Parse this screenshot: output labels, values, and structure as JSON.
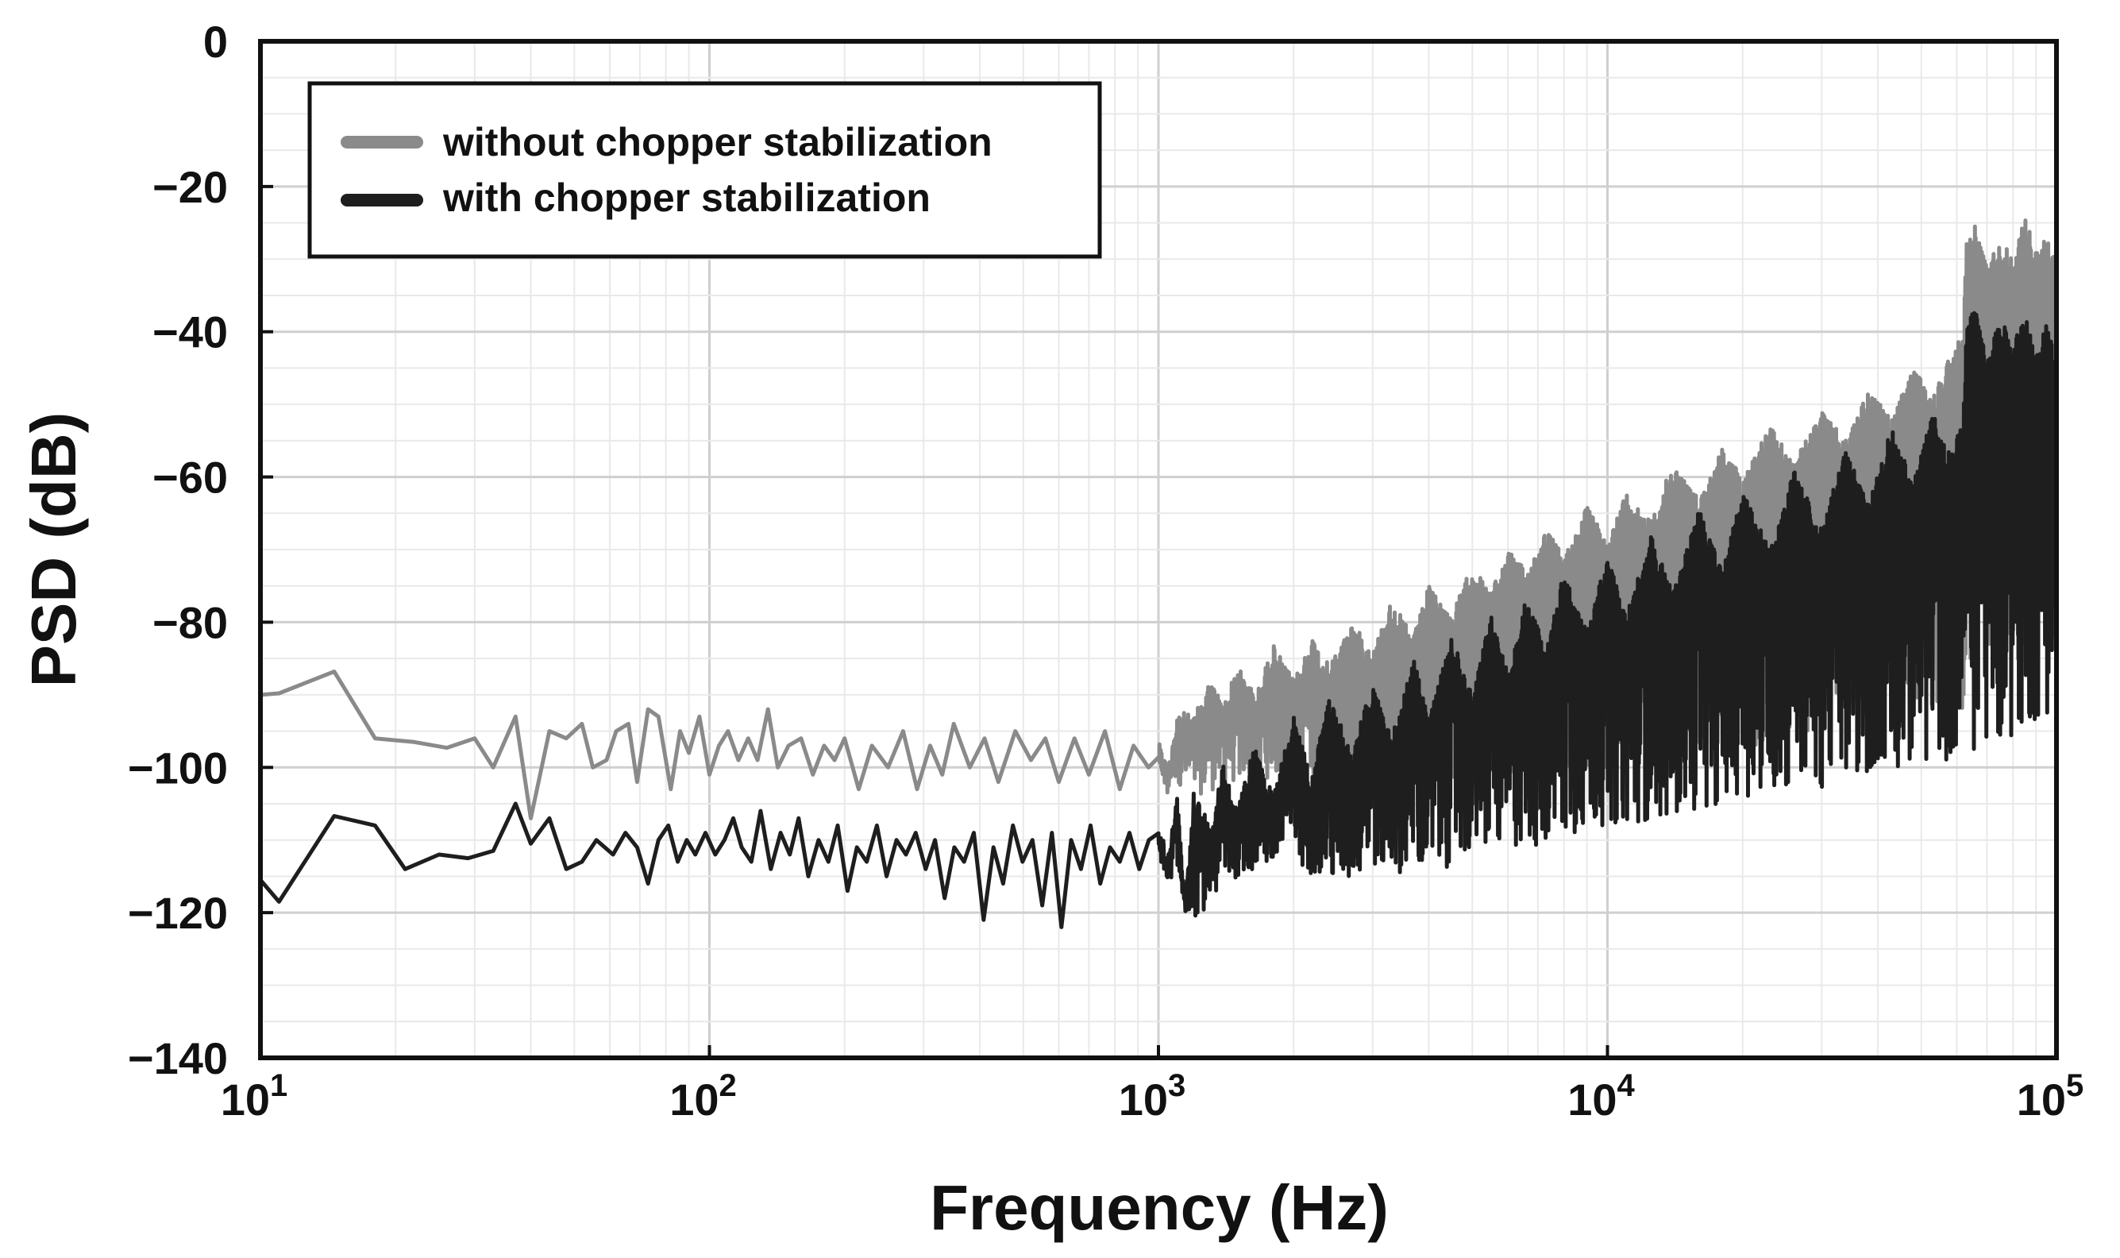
{
  "chart_data": {
    "type": "line",
    "title": "",
    "xlabel": "Frequency (Hz)",
    "ylabel": "PSD (dB)",
    "xscale": "log",
    "xlim": [
      10,
      100000
    ],
    "ylim": [
      -140,
      0
    ],
    "grid": true,
    "legend_position": "top-left",
    "x_ticks": [
      {
        "base": "10",
        "exp": "1",
        "value": 10
      },
      {
        "base": "10",
        "exp": "2",
        "value": 100
      },
      {
        "base": "10",
        "exp": "3",
        "value": 1000
      },
      {
        "base": "10",
        "exp": "4",
        "value": 10000
      },
      {
        "base": "10",
        "exp": "5",
        "value": 100000
      }
    ],
    "y_ticks": [
      {
        "value": 0,
        "label": "0"
      },
      {
        "value": -20,
        "label": "−20"
      },
      {
        "value": -40,
        "label": "−40"
      },
      {
        "value": -60,
        "label": "−60"
      },
      {
        "value": -80,
        "label": "−80"
      },
      {
        "value": -100,
        "label": "−100"
      },
      {
        "value": -120,
        "label": "−120"
      },
      {
        "value": -140,
        "label": "−140"
      }
    ],
    "series": [
      {
        "name": "without chopper stabilization",
        "color": "#8a8a8a",
        "points": [
          [
            10,
            -90
          ],
          [
            11,
            -89.8
          ],
          [
            14.6,
            -86.8
          ],
          [
            18,
            -96
          ],
          [
            22,
            -96.5
          ],
          [
            26,
            -97.3
          ],
          [
            30,
            -96
          ],
          [
            33,
            -100
          ],
          [
            37,
            -93
          ],
          [
            40,
            -107
          ],
          [
            44,
            -95
          ],
          [
            48,
            -96
          ],
          [
            52,
            -94
          ],
          [
            55,
            -100
          ],
          [
            59,
            -99
          ],
          [
            62,
            -95
          ],
          [
            66,
            -94
          ],
          [
            69,
            -102
          ],
          [
            73,
            -92
          ],
          [
            77,
            -93
          ],
          [
            82,
            -103
          ],
          [
            86,
            -95
          ],
          [
            90,
            -98
          ],
          [
            95,
            -93
          ],
          [
            100,
            -101
          ],
          [
            105,
            -97
          ],
          [
            110,
            -95
          ],
          [
            116,
            -99
          ],
          [
            122,
            -96
          ],
          [
            128,
            -99
          ],
          [
            135,
            -92
          ],
          [
            142,
            -100
          ],
          [
            150,
            -97
          ],
          [
            160,
            -96
          ],
          [
            170,
            -101
          ],
          [
            180,
            -97
          ],
          [
            190,
            -99
          ],
          [
            200,
            -96
          ],
          [
            215,
            -103
          ],
          [
            230,
            -97
          ],
          [
            250,
            -100
          ],
          [
            270,
            -95
          ],
          [
            290,
            -103
          ],
          [
            310,
            -97
          ],
          [
            330,
            -101
          ],
          [
            350,
            -94
          ],
          [
            380,
            -100
          ],
          [
            410,
            -96
          ],
          [
            440,
            -102
          ],
          [
            480,
            -95
          ],
          [
            520,
            -99
          ],
          [
            560,
            -96
          ],
          [
            600,
            -102
          ],
          [
            650,
            -96
          ],
          [
            700,
            -101
          ],
          [
            760,
            -95
          ],
          [
            820,
            -103
          ],
          [
            880,
            -97
          ],
          [
            950,
            -100
          ],
          [
            1000,
            -96
          ],
          [
            1050,
            -100
          ],
          [
            1100,
            -92
          ],
          [
            1200,
            -93
          ],
          [
            1300,
            -88
          ],
          [
            1400,
            -91
          ],
          [
            1500,
            -86
          ],
          [
            1650,
            -90
          ],
          [
            1800,
            -83
          ],
          [
            2000,
            -88
          ],
          [
            2200,
            -82
          ],
          [
            2400,
            -86
          ],
          [
            2700,
            -80
          ],
          [
            3000,
            -84
          ],
          [
            3300,
            -77
          ],
          [
            3700,
            -82
          ],
          [
            4000,
            -75
          ],
          [
            4500,
            -79
          ],
          [
            5000,
            -72
          ],
          [
            5500,
            -76
          ],
          [
            6000,
            -70
          ],
          [
            6600,
            -73
          ],
          [
            7300,
            -67
          ],
          [
            8000,
            -71
          ],
          [
            9000,
            -64
          ],
          [
            10000,
            -69
          ],
          [
            11000,
            -62
          ],
          [
            12500,
            -66
          ],
          [
            14000,
            -58
          ],
          [
            16000,
            -63
          ],
          [
            18000,
            -56
          ],
          [
            20000,
            -60
          ],
          [
            23000,
            -53
          ],
          [
            26000,
            -58
          ],
          [
            30000,
            -51
          ],
          [
            34000,
            -55
          ],
          [
            38000,
            -48
          ],
          [
            43000,
            -52
          ],
          [
            48000,
            -45
          ],
          [
            53000,
            -49
          ],
          [
            58000,
            -43
          ],
          [
            62000,
            -40
          ],
          [
            63000,
            -28
          ],
          [
            66000,
            -25
          ],
          [
            70000,
            -31
          ],
          [
            75000,
            -27
          ],
          [
            80000,
            -30
          ],
          [
            85000,
            -24
          ],
          [
            90000,
            -29
          ],
          [
            95000,
            -27
          ],
          [
            100000,
            -30
          ]
        ],
        "lower_envelope": [
          [
            1000,
            -100
          ],
          [
            1200,
            -104
          ],
          [
            1500,
            -102
          ],
          [
            2000,
            -101
          ],
          [
            3000,
            -105
          ],
          [
            4000,
            -100
          ],
          [
            5000,
            -103
          ],
          [
            7000,
            -99
          ],
          [
            10000,
            -101
          ],
          [
            13000,
            -96
          ],
          [
            20000,
            -98
          ],
          [
            30000,
            -95
          ],
          [
            45000,
            -93
          ],
          [
            62000,
            -92
          ],
          [
            80000,
            -88
          ],
          [
            100000,
            -89
          ]
        ]
      },
      {
        "name": "with chopper stabilization",
        "color": "#1e1e1e",
        "points": [
          [
            10,
            -115.5
          ],
          [
            11,
            -118.5
          ],
          [
            14.6,
            -106.7
          ],
          [
            18,
            -108
          ],
          [
            21,
            -114
          ],
          [
            25,
            -112
          ],
          [
            29,
            -112.5
          ],
          [
            33,
            -111.5
          ],
          [
            37,
            -105
          ],
          [
            40,
            -110.5
          ],
          [
            44,
            -107
          ],
          [
            48,
            -114
          ],
          [
            52,
            -113
          ],
          [
            56,
            -110
          ],
          [
            61,
            -112
          ],
          [
            65,
            -109
          ],
          [
            69,
            -111
          ],
          [
            73,
            -116
          ],
          [
            77,
            -110
          ],
          [
            81,
            -108
          ],
          [
            85,
            -113
          ],
          [
            89,
            -110
          ],
          [
            93,
            -112
          ],
          [
            98,
            -109
          ],
          [
            103,
            -112
          ],
          [
            108,
            -110
          ],
          [
            113,
            -107
          ],
          [
            118,
            -111
          ],
          [
            124,
            -113
          ],
          [
            130,
            -106
          ],
          [
            137,
            -114
          ],
          [
            144,
            -109
          ],
          [
            151,
            -112
          ],
          [
            158,
            -107
          ],
          [
            166,
            -115
          ],
          [
            175,
            -110
          ],
          [
            184,
            -113
          ],
          [
            193,
            -108
          ],
          [
            203,
            -117
          ],
          [
            213,
            -111
          ],
          [
            224,
            -113
          ],
          [
            236,
            -108
          ],
          [
            248,
            -115
          ],
          [
            261,
            -110
          ],
          [
            274,
            -112
          ],
          [
            288,
            -109
          ],
          [
            303,
            -114
          ],
          [
            318,
            -110
          ],
          [
            334,
            -118
          ],
          [
            351,
            -111
          ],
          [
            369,
            -113
          ],
          [
            388,
            -109
          ],
          [
            408,
            -121
          ],
          [
            429,
            -111
          ],
          [
            451,
            -116
          ],
          [
            474,
            -108
          ],
          [
            498,
            -113
          ],
          [
            524,
            -110
          ],
          [
            551,
            -119
          ],
          [
            579,
            -109
          ],
          [
            608,
            -122
          ],
          [
            639,
            -110
          ],
          [
            672,
            -114
          ],
          [
            706,
            -108
          ],
          [
            742,
            -116
          ],
          [
            780,
            -111
          ],
          [
            820,
            -113
          ],
          [
            862,
            -109
          ],
          [
            906,
            -114
          ],
          [
            952,
            -110
          ],
          [
            1000,
            -108
          ],
          [
            1050,
            -112
          ],
          [
            1100,
            -104
          ],
          [
            1150,
            -118
          ],
          [
            1200,
            -103
          ],
          [
            1300,
            -108
          ],
          [
            1400,
            -99
          ],
          [
            1500,
            -106
          ],
          [
            1650,
            -96
          ],
          [
            1800,
            -104
          ],
          [
            2000,
            -93
          ],
          [
            2200,
            -101
          ],
          [
            2400,
            -90
          ],
          [
            2700,
            -98
          ],
          [
            3000,
            -88
          ],
          [
            3300,
            -96
          ],
          [
            3700,
            -85
          ],
          [
            4000,
            -93
          ],
          [
            4500,
            -82
          ],
          [
            5000,
            -90
          ],
          [
            5500,
            -79
          ],
          [
            6000,
            -87
          ],
          [
            6600,
            -76
          ],
          [
            7300,
            -84
          ],
          [
            8000,
            -73
          ],
          [
            9000,
            -81
          ],
          [
            10000,
            -71
          ],
          [
            11000,
            -79
          ],
          [
            12500,
            -68
          ],
          [
            14000,
            -76
          ],
          [
            16000,
            -64
          ],
          [
            18000,
            -73
          ],
          [
            20000,
            -62
          ],
          [
            23000,
            -70
          ],
          [
            26000,
            -59
          ],
          [
            30000,
            -67
          ],
          [
            34000,
            -56
          ],
          [
            38000,
            -64
          ],
          [
            43000,
            -53
          ],
          [
            48000,
            -61
          ],
          [
            53000,
            -51
          ],
          [
            58000,
            -57
          ],
          [
            62000,
            -52
          ],
          [
            63000,
            -40
          ],
          [
            66000,
            -36
          ],
          [
            70000,
            -44
          ],
          [
            75000,
            -38
          ],
          [
            80000,
            -42
          ],
          [
            85000,
            -37
          ],
          [
            90000,
            -43
          ],
          [
            95000,
            -39
          ],
          [
            100000,
            -44
          ]
        ],
        "lower_envelope": [
          [
            1000,
            -112
          ],
          [
            1200,
            -121
          ],
          [
            1500,
            -115
          ],
          [
            2000,
            -113
          ],
          [
            2500,
            -117
          ],
          [
            3000,
            -114
          ],
          [
            4000,
            -115
          ],
          [
            5000,
            -112
          ],
          [
            7000,
            -111
          ],
          [
            10000,
            -108
          ],
          [
            14000,
            -107
          ],
          [
            20000,
            -104
          ],
          [
            30000,
            -103
          ],
          [
            45000,
            -100
          ],
          [
            62000,
            -99
          ],
          [
            80000,
            -96
          ],
          [
            100000,
            -92
          ]
        ]
      }
    ]
  }
}
